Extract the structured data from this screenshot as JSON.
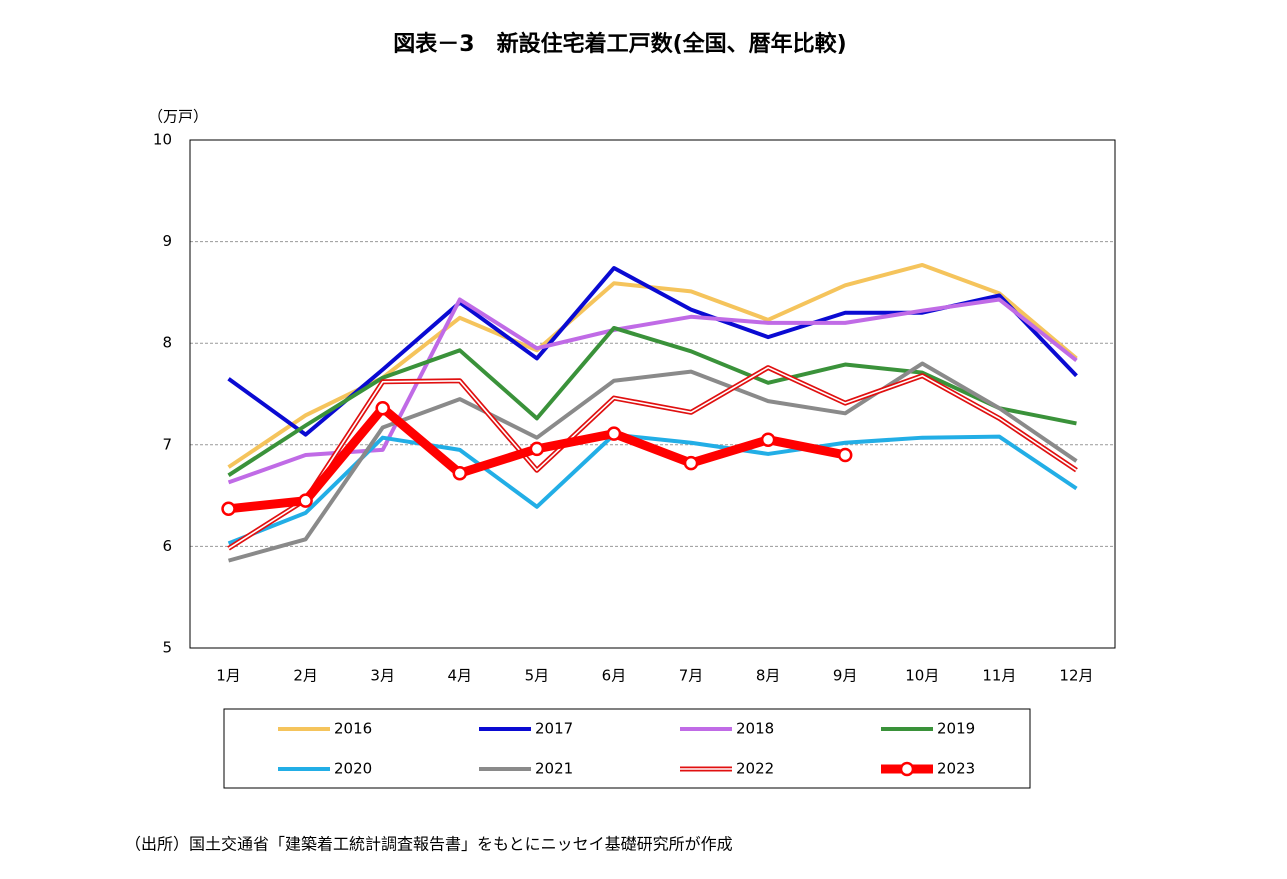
{
  "chart_data": {
    "type": "line",
    "title": "図表－3　新設住宅着工戸数(全国、暦年比較)",
    "y_label": "（万戸）",
    "source": "（出所）国土交通省「建築着工統計調査報告書」をもとにニッセイ基礎研究所が作成",
    "categories": [
      "1月",
      "2月",
      "3月",
      "4月",
      "5月",
      "6月",
      "7月",
      "8月",
      "9月",
      "10月",
      "11月",
      "12月"
    ],
    "ylim": [
      5,
      10
    ],
    "yticks": [
      5,
      6,
      7,
      8,
      9,
      10
    ],
    "grid": true,
    "series": [
      {
        "name": "2016",
        "color": "#f5c45c",
        "values": [
          6.78,
          7.29,
          7.66,
          8.25,
          7.93,
          8.59,
          8.51,
          8.23,
          8.57,
          8.77,
          8.49,
          7.85
        ]
      },
      {
        "name": "2017",
        "color": "#0a0ad2",
        "values": [
          7.65,
          7.1,
          7.74,
          8.4,
          7.85,
          8.74,
          8.33,
          8.06,
          8.3,
          8.3,
          8.47,
          7.68
        ]
      },
      {
        "name": "2018",
        "color": "#c06be6",
        "values": [
          6.63,
          6.9,
          6.95,
          8.43,
          7.95,
          8.13,
          8.26,
          8.2,
          8.2,
          8.32,
          8.43,
          7.83
        ]
      },
      {
        "name": "2019",
        "color": "#3a923a",
        "values": [
          6.7,
          7.19,
          7.66,
          7.93,
          7.26,
          8.15,
          7.92,
          7.61,
          7.79,
          7.71,
          7.36,
          7.21
        ]
      },
      {
        "name": "2020",
        "color": "#22aee6",
        "values": [
          6.03,
          6.33,
          7.07,
          6.95,
          6.39,
          7.1,
          7.02,
          6.91,
          7.02,
          7.07,
          7.08,
          6.57
        ]
      },
      {
        "name": "2021",
        "color": "#8a8a8a",
        "values": [
          5.86,
          6.07,
          7.17,
          7.45,
          7.07,
          7.63,
          7.72,
          7.43,
          7.31,
          7.8,
          7.36,
          6.84
        ]
      },
      {
        "name": "2022",
        "color": "#e01010",
        "style": "double",
        "values": [
          5.98,
          6.46,
          7.62,
          7.63,
          6.75,
          7.46,
          7.32,
          7.76,
          7.41,
          7.68,
          7.26,
          6.75
        ]
      },
      {
        "name": "2023",
        "color": "#ff0000",
        "style": "markers",
        "values": [
          6.37,
          6.45,
          7.36,
          6.72,
          6.96,
          7.11,
          6.82,
          7.05,
          6.9,
          null,
          null,
          null
        ]
      }
    ]
  }
}
